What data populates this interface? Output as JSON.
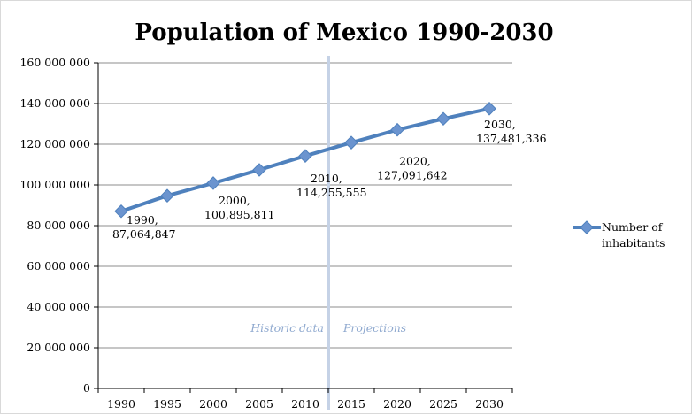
{
  "chart_data": {
    "type": "line",
    "title": "Population of Mexico 1990-2030",
    "x": [
      1990,
      1995,
      2000,
      2005,
      2010,
      2015,
      2020,
      2025,
      2030
    ],
    "categories": [
      "1990",
      "1995",
      "2000",
      "2005",
      "2010",
      "2015",
      "2020",
      "2025",
      "2030"
    ],
    "series": [
      {
        "name": "Number of inhabitants",
        "values": [
          87064847,
          94700000,
          100895811,
          107400000,
          114255555,
          120800000,
          127091642,
          132500000,
          137481336
        ],
        "color": "#4f81bd"
      }
    ],
    "data_labels": [
      {
        "year": "1990",
        "value": "87,064,847"
      },
      {
        "year": "2000",
        "value": "100,895,811"
      },
      {
        "year": "2010",
        "value": "114,255,555"
      },
      {
        "year": "2020",
        "value": "127,091,642"
      },
      {
        "year": "2030",
        "value": "137,481,336"
      }
    ],
    "y_ticks": [
      "0",
      "20 000 000",
      "40 000 000",
      "60 000 000",
      "80 000 000",
      "100 000 000",
      "120 000 000",
      "140 000 000",
      "160 000 000"
    ],
    "ylim": [
      0,
      160000000
    ],
    "grid": true,
    "legend_position": "right",
    "divider_year": 2012.5,
    "annotations": {
      "left": "Historic data",
      "right": "Projections"
    },
    "colors": {
      "line": "#4f81bd",
      "grid": "#8c8c8c",
      "divider": "#c5d2e6",
      "annotation": "#8fa9cf"
    }
  }
}
